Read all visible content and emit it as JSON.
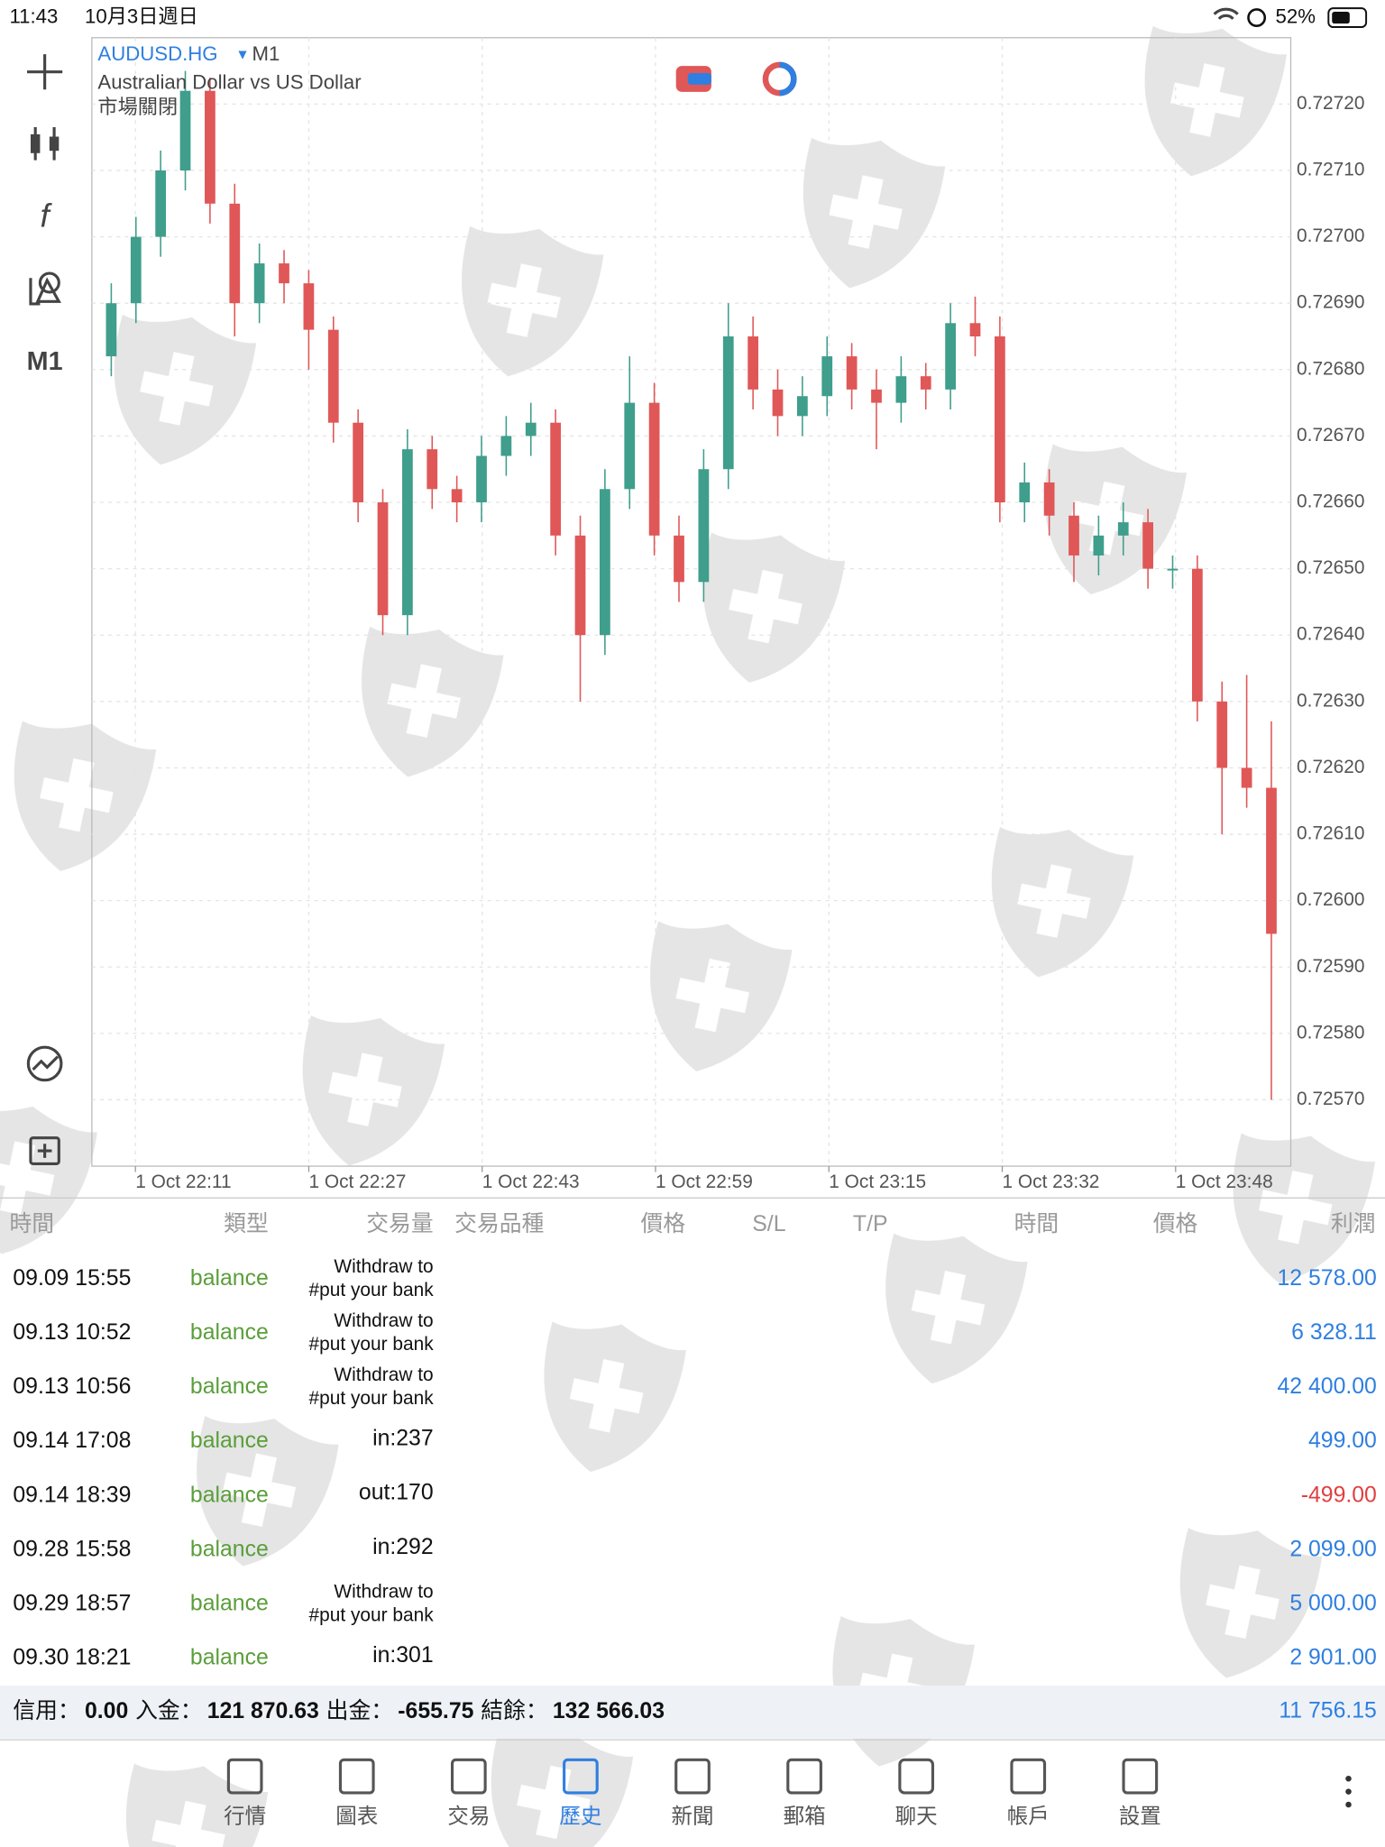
{
  "status": {
    "time": "11:43",
    "date": "10月3日週日",
    "battery": "52%"
  },
  "chart_data": {
    "type": "candlestick",
    "symbol": "AUDUSD.HG",
    "timeframe": "M1",
    "description": "Australian Dollar vs US Dollar",
    "market_status": "市場關閉",
    "up_color": "#3f9e8c",
    "down_color": "#e05757",
    "grid": true,
    "ylim": [
      0.7256,
      0.7273
    ],
    "yticks": [
      {
        "value": 0.7257,
        "label": "0.72570"
      },
      {
        "value": 0.7258,
        "label": "0.72580"
      },
      {
        "value": 0.7259,
        "label": "0.72590"
      },
      {
        "value": 0.726,
        "label": "0.72600"
      },
      {
        "value": 0.7261,
        "label": "0.72610"
      },
      {
        "value": 0.7262,
        "label": "0.72620"
      },
      {
        "value": 0.7263,
        "label": "0.72630"
      },
      {
        "value": 0.7264,
        "label": "0.72640"
      },
      {
        "value": 0.7265,
        "label": "0.72650"
      },
      {
        "value": 0.7266,
        "label": "0.72660"
      },
      {
        "value": 0.7267,
        "label": "0.72670"
      },
      {
        "value": 0.7268,
        "label": "0.72680"
      },
      {
        "value": 0.7269,
        "label": "0.72690"
      },
      {
        "value": 0.727,
        "label": "0.72700"
      },
      {
        "value": 0.7271,
        "label": "0.72710"
      },
      {
        "value": 0.7272,
        "label": "0.72720"
      }
    ],
    "xticks": [
      "1 Oct 22:11",
      "1 Oct 22:27",
      "1 Oct 22:43",
      "1 Oct 22:59",
      "1 Oct 23:15",
      "1 Oct 23:32",
      "1 Oct 23:48"
    ],
    "candles": [
      [
        0.72682,
        0.72693,
        0.72679,
        0.7269
      ],
      [
        0.7269,
        0.72703,
        0.72687,
        0.727
      ],
      [
        0.727,
        0.72713,
        0.72697,
        0.7271
      ],
      [
        0.7271,
        0.72725,
        0.72707,
        0.72722
      ],
      [
        0.72722,
        0.72724,
        0.72702,
        0.72705
      ],
      [
        0.72705,
        0.72708,
        0.72685,
        0.7269
      ],
      [
        0.7269,
        0.72699,
        0.72687,
        0.72696
      ],
      [
        0.72696,
        0.72698,
        0.7269,
        0.72693
      ],
      [
        0.72693,
        0.72695,
        0.7268,
        0.72686
      ],
      [
        0.72686,
        0.72688,
        0.72669,
        0.72672
      ],
      [
        0.72672,
        0.72674,
        0.72657,
        0.7266
      ],
      [
        0.7266,
        0.72662,
        0.7264,
        0.72643
      ],
      [
        0.72643,
        0.72671,
        0.7264,
        0.72668
      ],
      [
        0.72668,
        0.7267,
        0.72659,
        0.72662
      ],
      [
        0.72662,
        0.72664,
        0.72657,
        0.7266
      ],
      [
        0.7266,
        0.7267,
        0.72657,
        0.72667
      ],
      [
        0.72667,
        0.72673,
        0.72664,
        0.7267
      ],
      [
        0.7267,
        0.72675,
        0.72667,
        0.72672
      ],
      [
        0.72672,
        0.72674,
        0.72652,
        0.72655
      ],
      [
        0.72655,
        0.72658,
        0.7263,
        0.7264
      ],
      [
        0.7264,
        0.72665,
        0.72637,
        0.72662
      ],
      [
        0.72662,
        0.72682,
        0.72659,
        0.72675
      ],
      [
        0.72675,
        0.72678,
        0.72652,
        0.72655
      ],
      [
        0.72655,
        0.72658,
        0.72645,
        0.72648
      ],
      [
        0.72648,
        0.72668,
        0.72645,
        0.72665
      ],
      [
        0.72665,
        0.7269,
        0.72662,
        0.72685
      ],
      [
        0.72685,
        0.72688,
        0.72674,
        0.72677
      ],
      [
        0.72677,
        0.7268,
        0.7267,
        0.72673
      ],
      [
        0.72673,
        0.72679,
        0.7267,
        0.72676
      ],
      [
        0.72676,
        0.72685,
        0.72673,
        0.72682
      ],
      [
        0.72682,
        0.72684,
        0.72674,
        0.72677
      ],
      [
        0.72677,
        0.7268,
        0.72668,
        0.72675
      ],
      [
        0.72675,
        0.72682,
        0.72672,
        0.72679
      ],
      [
        0.72679,
        0.72681,
        0.72674,
        0.72677
      ],
      [
        0.72677,
        0.7269,
        0.72674,
        0.72687
      ],
      [
        0.72687,
        0.72691,
        0.72682,
        0.72685
      ],
      [
        0.72685,
        0.72688,
        0.72657,
        0.7266
      ],
      [
        0.7266,
        0.72666,
        0.72657,
        0.72663
      ],
      [
        0.72663,
        0.72665,
        0.72655,
        0.72658
      ],
      [
        0.72658,
        0.7266,
        0.72648,
        0.72652
      ],
      [
        0.72652,
        0.72658,
        0.72649,
        0.72655
      ],
      [
        0.72655,
        0.7266,
        0.72652,
        0.72657
      ],
      [
        0.72657,
        0.72659,
        0.72647,
        0.7265
      ],
      [
        0.7265,
        0.72652,
        0.72647,
        0.7265
      ],
      [
        0.7265,
        0.72652,
        0.72627,
        0.7263
      ],
      [
        0.7263,
        0.72633,
        0.7261,
        0.7262
      ],
      [
        0.7262,
        0.72634,
        0.72614,
        0.72617
      ],
      [
        0.72617,
        0.72627,
        0.7257,
        0.72595
      ]
    ]
  },
  "table": {
    "headers": [
      "時間",
      "類型",
      "交易量",
      "交易品種",
      "價格",
      "S/L",
      "T/P",
      "時間",
      "價格",
      "利潤"
    ],
    "rows": [
      {
        "time": "09.09 15:55",
        "type": "balance",
        "volume": [
          "Withdraw to",
          "#put your bank"
        ],
        "profit": "12 578.00"
      },
      {
        "time": "09.13 10:52",
        "type": "balance",
        "volume": [
          "Withdraw to",
          "#put your bank"
        ],
        "profit": "6 328.11"
      },
      {
        "time": "09.13 10:56",
        "type": "balance",
        "volume": [
          "Withdraw to",
          "#put your bank"
        ],
        "profit": "42 400.00"
      },
      {
        "time": "09.14 17:08",
        "type": "balance",
        "volume": [
          "in:237"
        ],
        "profit": "499.00"
      },
      {
        "time": "09.14 18:39",
        "type": "balance",
        "volume": [
          "out:170"
        ],
        "profit": "-499.00"
      },
      {
        "time": "09.28 15:58",
        "type": "balance",
        "volume": [
          "in:292"
        ],
        "profit": "2 099.00"
      },
      {
        "time": "09.29 18:57",
        "type": "balance",
        "volume": [
          "Withdraw to",
          "#put your bank"
        ],
        "profit": "5 000.00"
      },
      {
        "time": "09.30 18:21",
        "type": "balance",
        "volume": [
          "in:301"
        ],
        "profit": "2 901.00"
      }
    ]
  },
  "summary": {
    "credit_label": "信用：",
    "credit": "0.00",
    "deposit_label": "入金：",
    "deposit": "121 870.63",
    "withdrawal_label": "出金：",
    "withdrawal": "-655.75",
    "balance_label": "結餘：",
    "balance": "132 566.03",
    "total": "11 756.15"
  },
  "tabs": [
    "行情",
    "圖表",
    "交易",
    "歷史",
    "新聞",
    "郵箱",
    "聊天",
    "帳戶",
    "設置"
  ]
}
